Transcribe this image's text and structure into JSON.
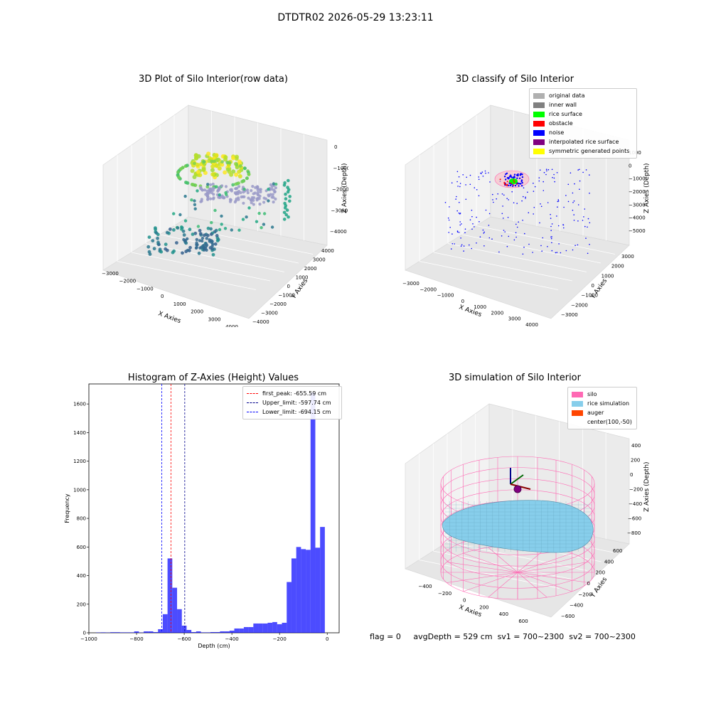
{
  "figure": {
    "suptitle": "DTDTR02 2026-05-29 13:23:11",
    "footer": {
      "flag": "flag = 0",
      "avg_depth": "avgDepth = 529 cm",
      "sv1": "sv1 = 700~2300",
      "sv2": "sv2 = 700~2300"
    }
  },
  "chart_data": [
    {
      "type": "scatter",
      "projection": "3d",
      "title": "3D Plot of Silo Interior(row data)",
      "xlabel": "X Axies",
      "ylabel": "Y Axies",
      "zlabel": "Z Axies (Depth)",
      "xlim": [
        -3000,
        4000
      ],
      "ylim": [
        -4000,
        4000
      ],
      "zlim": [
        -4500,
        0
      ],
      "xticks": [
        "−3000",
        "−2000",
        "−1000",
        "0",
        "1000",
        "2000",
        "3000",
        "4000"
      ],
      "yticks": [
        "−4000",
        "−3000",
        "−2000",
        "−1000",
        "0",
        "1000",
        "2000",
        "3000",
        "4000"
      ],
      "zticks": [
        "0",
        "−1000",
        "−2000",
        "−3000",
        "−4000"
      ],
      "colormap": "viridis by depth"
    },
    {
      "type": "scatter",
      "projection": "3d",
      "title": "3D classify of Silo Interior",
      "xlabel": "X Axies",
      "ylabel": "Y Axies",
      "zlabel": "Z Axies (Depth)",
      "xlim": [
        -3000,
        4000
      ],
      "ylim": [
        -3000,
        3000
      ],
      "zlim": [
        -5500,
        1000
      ],
      "xticks": [
        "−3000",
        "−2000",
        "−1000",
        "0",
        "1000",
        "2000",
        "3000",
        "4000"
      ],
      "yticks": [
        "−3000",
        "−2000",
        "−1000",
        "0",
        "1000",
        "2000",
        "3000"
      ],
      "zticks": [
        "1000",
        "0",
        "−1000",
        "−2000",
        "−3000",
        "−4000",
        "−5000"
      ],
      "legend": [
        {
          "name": "original data",
          "color": "#b0b0b0"
        },
        {
          "name": "inner wall",
          "color": "#808080"
        },
        {
          "name": "rice surface",
          "color": "#00ff00"
        },
        {
          "name": "obstacle",
          "color": "#ff0000"
        },
        {
          "name": "noise",
          "color": "#0000ff"
        },
        {
          "name": "interpolated rice surface",
          "color": "#800080"
        },
        {
          "name": "symmetric generated points",
          "color": "#ffff00"
        }
      ]
    },
    {
      "type": "bar",
      "title": "Histogram of Z-Axies (Height) Values",
      "xlabel": "Depth (cm)",
      "ylabel": "Frequency",
      "xlim": [
        -1000,
        50
      ],
      "ylim": [
        0,
        1740
      ],
      "xticks": [
        -1000,
        -800,
        -600,
        -400,
        -200,
        0
      ],
      "yticks": [
        0,
        200,
        400,
        600,
        800,
        1000,
        1200,
        1400,
        1600
      ],
      "bin_width": 20,
      "bins": [
        {
          "x": -960,
          "v": 2
        },
        {
          "x": -940,
          "v": 3
        },
        {
          "x": -920,
          "v": 2
        },
        {
          "x": -900,
          "v": 4
        },
        {
          "x": -880,
          "v": 4
        },
        {
          "x": -860,
          "v": 3
        },
        {
          "x": -840,
          "v": 3
        },
        {
          "x": -820,
          "v": 3
        },
        {
          "x": -800,
          "v": 10
        },
        {
          "x": -780,
          "v": 2
        },
        {
          "x": -760,
          "v": 10
        },
        {
          "x": -740,
          "v": 10
        },
        {
          "x": -720,
          "v": 5
        },
        {
          "x": -700,
          "v": 25
        },
        {
          "x": -680,
          "v": 130
        },
        {
          "x": -660,
          "v": 520
        },
        {
          "x": -640,
          "v": 315
        },
        {
          "x": -620,
          "v": 165
        },
        {
          "x": -600,
          "v": 50
        },
        {
          "x": -580,
          "v": 20
        },
        {
          "x": -560,
          "v": 5
        },
        {
          "x": -540,
          "v": 10
        },
        {
          "x": -520,
          "v": 3
        },
        {
          "x": -500,
          "v": 3
        },
        {
          "x": -480,
          "v": 5
        },
        {
          "x": -460,
          "v": 5
        },
        {
          "x": -440,
          "v": 10
        },
        {
          "x": -420,
          "v": 10
        },
        {
          "x": -400,
          "v": 15
        },
        {
          "x": -380,
          "v": 30
        },
        {
          "x": -360,
          "v": 30
        },
        {
          "x": -340,
          "v": 40
        },
        {
          "x": -320,
          "v": 40
        },
        {
          "x": -300,
          "v": 65
        },
        {
          "x": -280,
          "v": 65
        },
        {
          "x": -260,
          "v": 65
        },
        {
          "x": -240,
          "v": 70
        },
        {
          "x": -220,
          "v": 75
        },
        {
          "x": -200,
          "v": 60
        },
        {
          "x": -180,
          "v": 70
        },
        {
          "x": -160,
          "v": 355
        },
        {
          "x": -140,
          "v": 520
        },
        {
          "x": -120,
          "v": 600
        },
        {
          "x": -100,
          "v": 585
        },
        {
          "x": -80,
          "v": 580
        },
        {
          "x": -60,
          "v": 1680
        },
        {
          "x": -40,
          "v": 595
        },
        {
          "x": -20,
          "v": 740
        }
      ],
      "bar_color": "#0000ff",
      "lines": [
        {
          "name": "first_peak: -655.59 cm",
          "x": -655.59,
          "color": "#ff0000"
        },
        {
          "name": "Upper_limit: -597.74 cm",
          "x": -597.74,
          "color": "#00008b"
        },
        {
          "name": "Lower_limit: -694.15 cm",
          "x": -694.15,
          "color": "#0000ff"
        }
      ],
      "legend_position": "top-right"
    },
    {
      "type": "surface",
      "projection": "3d",
      "title": "3D simulation of Silo Interior",
      "xlabel": "X Axies",
      "ylabel": "Y Axies",
      "zlabel": "Z Axies (Depth)",
      "xlim": [
        -500,
        700
      ],
      "ylim": [
        -700,
        600
      ],
      "zlim": [
        -900,
        500
      ],
      "xticks": [
        "−400",
        "−200",
        "0",
        "200",
        "400",
        "600"
      ],
      "yticks": [
        "−600",
        "−400",
        "−200",
        "0",
        "200",
        "400",
        "600"
      ],
      "zticks": [
        "400",
        "200",
        "0",
        "−200",
        "−400",
        "−600",
        "−800"
      ],
      "legend": [
        {
          "name": "silo",
          "color": "#ff69b4"
        },
        {
          "name": "rice simulation",
          "color": "#87ceeb"
        },
        {
          "name": "auger",
          "color": "#ff4500"
        },
        {
          "name": "center(100,-50)",
          "color": ""
        }
      ]
    }
  ]
}
